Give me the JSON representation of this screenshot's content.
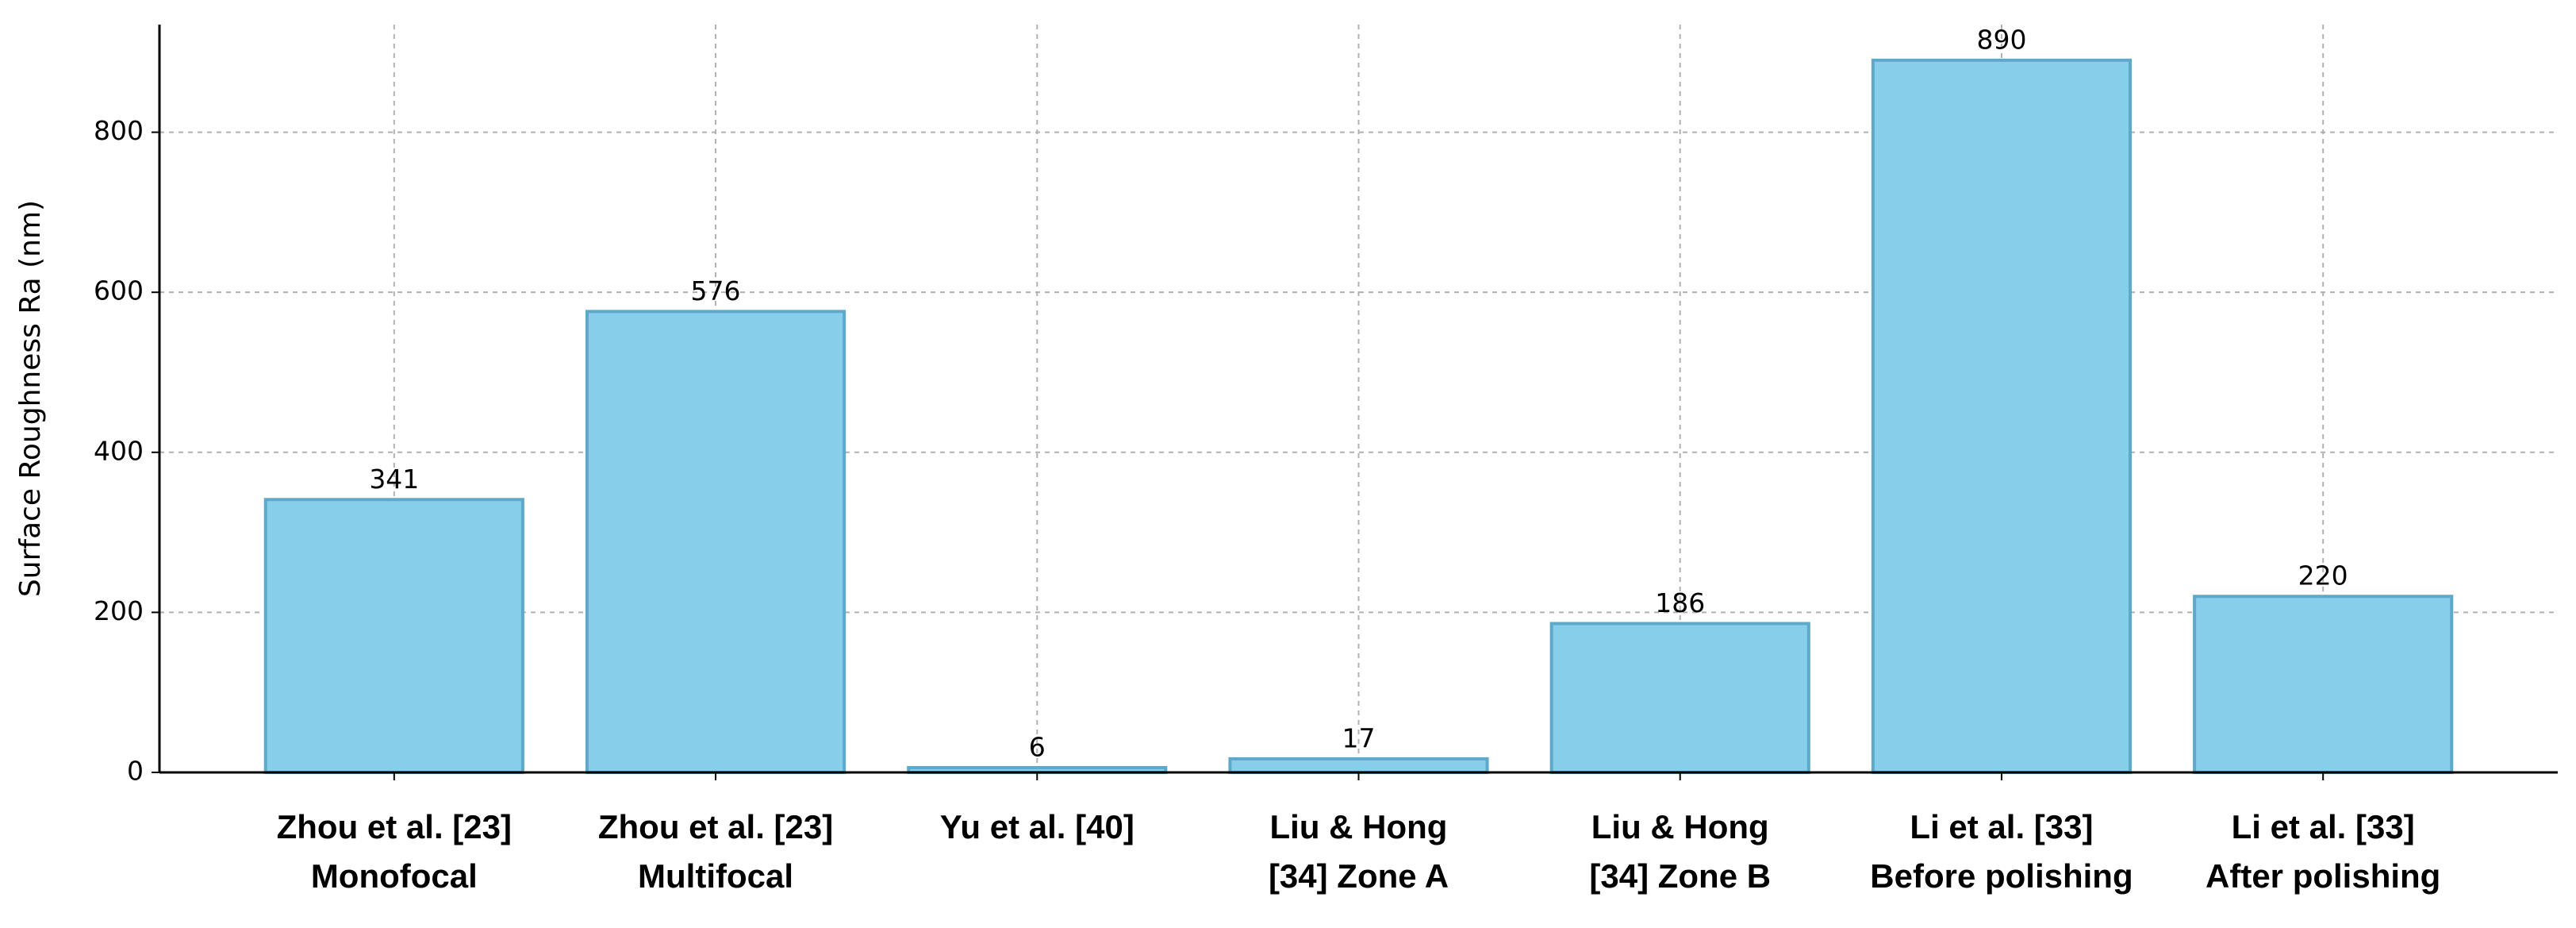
{
  "chart_data": {
    "type": "bar",
    "ylabel": "Surface Roughness Ra (nm)",
    "categories": [
      [
        "Zhou et al. [23]",
        "Monofocal"
      ],
      [
        "Zhou et al. [23]",
        "Multifocal"
      ],
      [
        "Yu et al. [40]"
      ],
      [
        "Liu & Hong",
        "[34] Zone A"
      ],
      [
        "Liu & Hong",
        "[34] Zone B"
      ],
      [
        "Li et al. [33]",
        "Before polishing"
      ],
      [
        "Li et al. [33]",
        "After polishing"
      ]
    ],
    "values": [
      341,
      576,
      6,
      17,
      186,
      890,
      220
    ],
    "color": "#87ceeb",
    "edgecolor": "#5ea9c9",
    "ylim": [
      0,
      934.5
    ],
    "yticks": [
      0,
      200,
      400,
      600,
      800
    ],
    "grid": true
  }
}
